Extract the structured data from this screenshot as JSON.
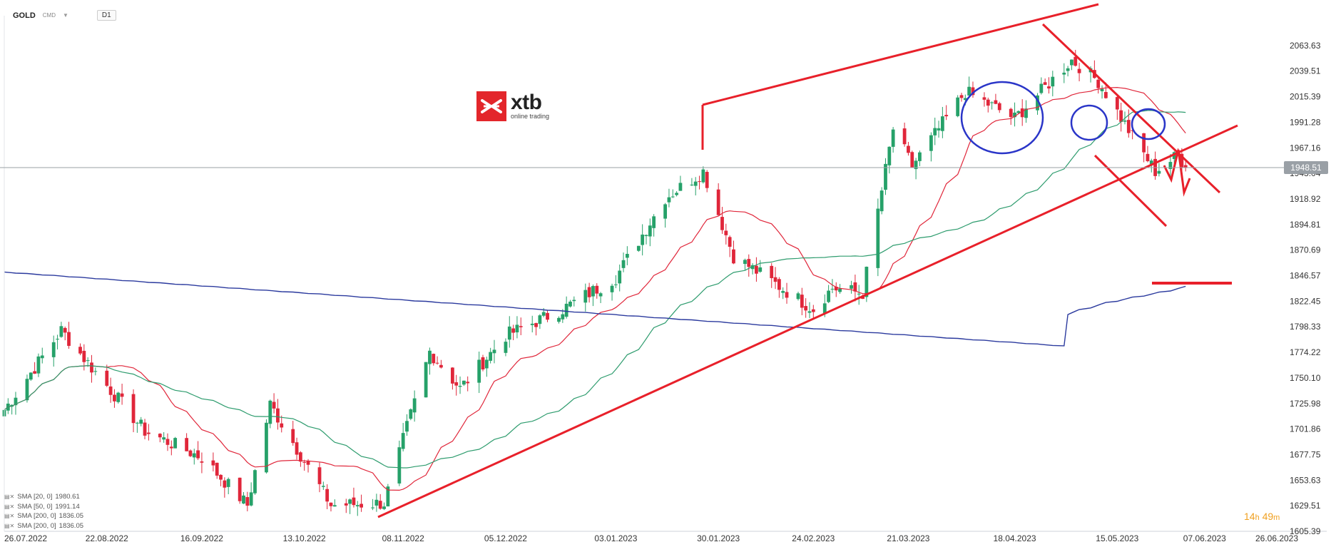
{
  "header": {
    "symbol": "GOLD",
    "symbol_type": "CMD",
    "timeframe": "D1"
  },
  "logo": {
    "brand": "xtb",
    "tagline": "online trading"
  },
  "timer": {
    "hours": "14",
    "h_unit": "h",
    "minutes": "49",
    "m_unit": "m"
  },
  "legend": [
    {
      "label": "SMA [20, 0]",
      "value": "1980.61"
    },
    {
      "label": "SMA [50, 0]",
      "value": "1991.14"
    },
    {
      "label": "SMA [200, 0]",
      "value": "1836.05"
    },
    {
      "label": "SMA [200, 0]",
      "value": "1836.05"
    }
  ],
  "colors": {
    "up": "#26a169",
    "down": "#e0263a",
    "sma20": "#e0263a",
    "sma50": "#2e9c6e",
    "sma200": "#2b3a9e",
    "annotation": "#e8202a",
    "circle": "#2a35c8",
    "price_line": "#9aa0a6",
    "axis_text": "#333333"
  },
  "chart_data": {
    "type": "candlestick",
    "instrument": "GOLD",
    "timeframe": "D1",
    "current_price": "1948.51",
    "y_ticks": [
      "2063.63",
      "2039.51",
      "2015.39",
      "1991.28",
      "1967.16",
      "1943.04",
      "1918.92",
      "1894.81",
      "1870.69",
      "1846.57",
      "1822.45",
      "1798.33",
      "1774.22",
      "1750.10",
      "1725.98",
      "1701.86",
      "1677.75",
      "1653.63",
      "1629.51",
      "1605.39"
    ],
    "x_ticks": [
      "26.07.2022",
      "22.08.2022",
      "16.09.2022",
      "13.10.2022",
      "08.11.2022",
      "05.12.2022",
      "03.01.2023",
      "30.01.2023",
      "24.02.2023",
      "21.03.2023",
      "18.04.2023",
      "15.05.2023",
      "07.06.2023",
      "26.06.2023"
    ],
    "x_range": [
      "2022-07-26",
      "2023-06-26"
    ],
    "y_range": [
      1605.39,
      2087.75
    ],
    "key_prices": [
      {
        "date": "2022-07-26",
        "close": 1720
      },
      {
        "date": "2022-08-10",
        "close": 1795
      },
      {
        "date": "2022-08-18",
        "close": 1760
      },
      {
        "date": "2022-09-01",
        "close": 1700
      },
      {
        "date": "2022-09-16",
        "close": 1675
      },
      {
        "date": "2022-09-28",
        "close": 1630
      },
      {
        "date": "2022-10-04",
        "close": 1725
      },
      {
        "date": "2022-10-20",
        "close": 1630
      },
      {
        "date": "2022-11-03",
        "close": 1632
      },
      {
        "date": "2022-11-15",
        "close": 1775
      },
      {
        "date": "2022-11-23",
        "close": 1740
      },
      {
        "date": "2022-12-05",
        "close": 1790
      },
      {
        "date": "2022-12-20",
        "close": 1815
      },
      {
        "date": "2023-01-03",
        "close": 1845
      },
      {
        "date": "2023-01-16",
        "close": 1920
      },
      {
        "date": "2023-01-26",
        "close": 1945
      },
      {
        "date": "2023-02-03",
        "close": 1865
      },
      {
        "date": "2023-02-24",
        "close": 1815
      },
      {
        "date": "2023-03-01",
        "close": 1835
      },
      {
        "date": "2023-03-09",
        "close": 1830
      },
      {
        "date": "2023-03-17",
        "close": 1985
      },
      {
        "date": "2023-03-22",
        "close": 1950
      },
      {
        "date": "2023-04-05",
        "close": 2020
      },
      {
        "date": "2023-04-18",
        "close": 1995
      },
      {
        "date": "2023-05-03",
        "close": 2050
      },
      {
        "date": "2023-05-10",
        "close": 2030
      },
      {
        "date": "2023-05-19",
        "close": 1978
      },
      {
        "date": "2023-05-25",
        "close": 1945
      },
      {
        "date": "2023-05-31",
        "close": 1960
      },
      {
        "date": "2023-06-02",
        "close": 1948.51
      }
    ],
    "series": [
      {
        "name": "SMA [20, 0]",
        "last_value": 1980.61
      },
      {
        "name": "SMA [50, 0]",
        "last_value": 1991.14
      },
      {
        "name": "SMA [200, 0]",
        "last_value": 1836.05
      }
    ]
  }
}
